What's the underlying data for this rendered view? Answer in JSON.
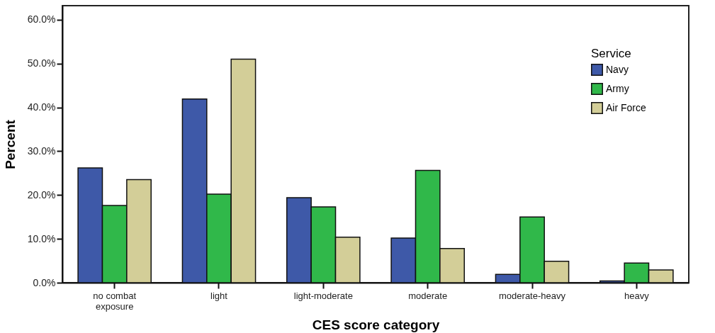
{
  "chart_data": {
    "type": "bar",
    "xlabel": "CES score category",
    "ylabel": "Percent",
    "legend_title": "Service",
    "legend": "top right",
    "grid": false,
    "categories": [
      "no combat exposure",
      "light",
      "light-moderate",
      "moderate",
      "moderate-heavy",
      "heavy"
    ],
    "series": [
      {
        "name": "Navy",
        "color": "#3e59a8",
        "values": [
          26.2,
          41.9,
          19.4,
          10.2,
          1.9,
          0.4
        ]
      },
      {
        "name": "Army",
        "color": "#30b84a",
        "values": [
          17.6,
          20.2,
          17.3,
          25.6,
          15.0,
          4.5
        ]
      },
      {
        "name": "Air Force",
        "color": "#d3ce98",
        "values": [
          23.5,
          51.0,
          10.4,
          7.8,
          4.9,
          2.9
        ]
      }
    ],
    "ylim": [
      0,
      63.2
    ],
    "yticks": [
      {
        "value": 0,
        "label": "0.0%"
      },
      {
        "value": 10,
        "label": "10.0%"
      },
      {
        "value": 20,
        "label": "20.0%"
      },
      {
        "value": 30,
        "label": "30.0%"
      },
      {
        "value": 40,
        "label": "40.0%"
      },
      {
        "value": 50,
        "label": "50.0%"
      },
      {
        "value": 60,
        "label": "60.0%"
      }
    ]
  }
}
